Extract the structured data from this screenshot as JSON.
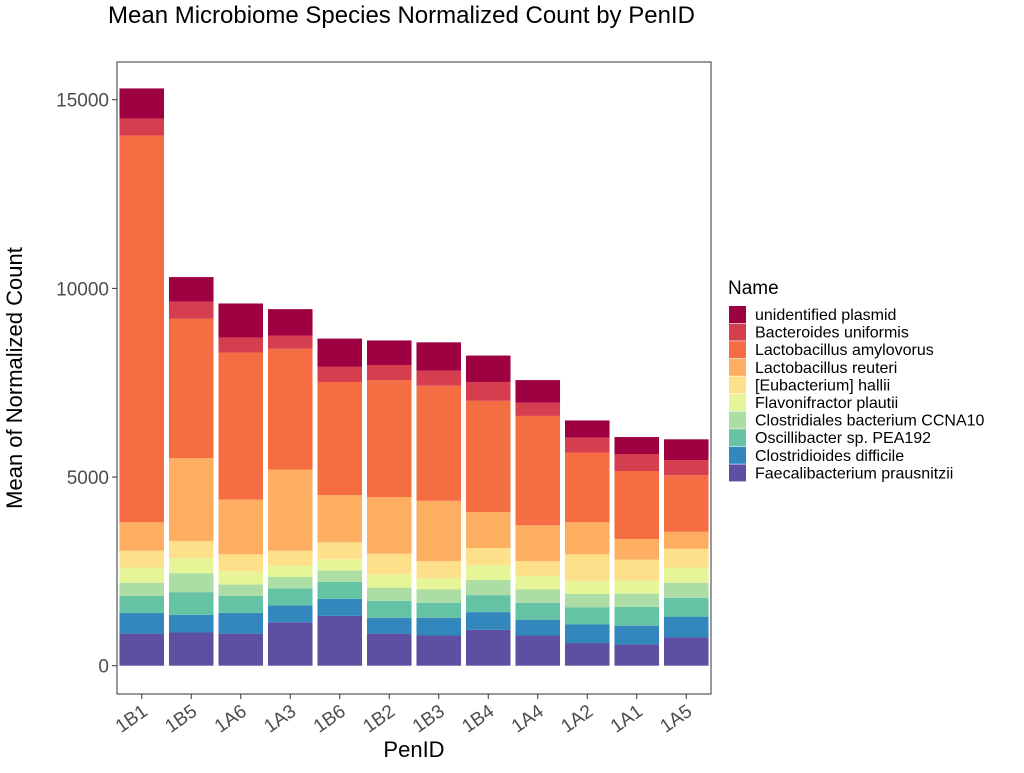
{
  "chart_data": {
    "type": "bar",
    "stacked": true,
    "title": "Mean Microbiome Species Normalized Count by PenID",
    "xlabel": "PenID",
    "ylabel": "Mean of Normalized Count",
    "ylim": [
      -750,
      16000
    ],
    "yticks": [
      0,
      5000,
      10000,
      15000
    ],
    "grid": false,
    "legend": {
      "title": "Name",
      "position": "right"
    },
    "categories": [
      "1B1",
      "1B5",
      "1A6",
      "1A3",
      "1B6",
      "1B2",
      "1B3",
      "1B4",
      "1A4",
      "1A2",
      "1A1",
      "1A5"
    ],
    "series": [
      {
        "name": "Faecalibacterium prausnitzii",
        "color": "#5e4fa2",
        "values": [
          850,
          880,
          850,
          1150,
          1320,
          850,
          800,
          950,
          800,
          600,
          560,
          750
        ]
      },
      {
        "name": "Clostridioides difficile",
        "color": "#3288bd",
        "values": [
          550,
          470,
          550,
          450,
          450,
          420,
          470,
          470,
          420,
          500,
          500,
          550
        ]
      },
      {
        "name": "Oscillibacter sp. PEA192",
        "color": "#66c2a5",
        "values": [
          450,
          600,
          450,
          450,
          450,
          450,
          400,
          450,
          450,
          450,
          500,
          500
        ]
      },
      {
        "name": "Clostridiales bacterium CCNA10",
        "color": "#abdda4",
        "values": [
          350,
          500,
          300,
          300,
          300,
          350,
          350,
          400,
          350,
          350,
          350,
          400
        ]
      },
      {
        "name": "Flavonifractor plautii",
        "color": "#e6f598",
        "values": [
          400,
          400,
          350,
          300,
          300,
          350,
          300,
          400,
          350,
          350,
          350,
          400
        ]
      },
      {
        "name": "[Eubacterium] hallii",
        "color": "#fee08b",
        "values": [
          450,
          450,
          450,
          400,
          450,
          550,
          450,
          450,
          400,
          700,
          550,
          500
        ]
      },
      {
        "name": "Lactobacillus reuteri",
        "color": "#fdae61",
        "values": [
          750,
          2200,
          1450,
          2150,
          1250,
          1500,
          1600,
          950,
          950,
          850,
          550,
          450
        ]
      },
      {
        "name": "Lactobacillus amylovorus",
        "color": "#f46d43",
        "values": [
          10250,
          3700,
          3900,
          3200,
          3000,
          3100,
          3050,
          2950,
          2900,
          1850,
          1800,
          1500
        ]
      },
      {
        "name": "Bacteroides uniformis",
        "color": "#d53e4f",
        "values": [
          450,
          450,
          400,
          350,
          400,
          400,
          400,
          500,
          350,
          400,
          450,
          400
        ]
      },
      {
        "name": "unidentified plasmid",
        "color": "#9e0142",
        "values": [
          800,
          650,
          900,
          700,
          750,
          650,
          750,
          700,
          600,
          450,
          450,
          550
        ]
      }
    ]
  }
}
